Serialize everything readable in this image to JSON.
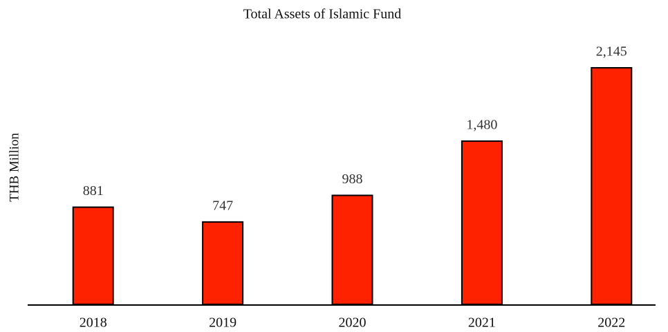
{
  "chart_data": {
    "type": "bar",
    "title": "Total Assets of Islamic Fund",
    "y_label": "THB Million",
    "categories": [
      "2018",
      "2019",
      "2020",
      "2021",
      "2022"
    ],
    "values": [
      881,
      747,
      988,
      1480,
      2145
    ],
    "value_labels": [
      "881",
      "747",
      "988",
      "1,480",
      "2,145"
    ],
    "color": "#ff2200"
  }
}
